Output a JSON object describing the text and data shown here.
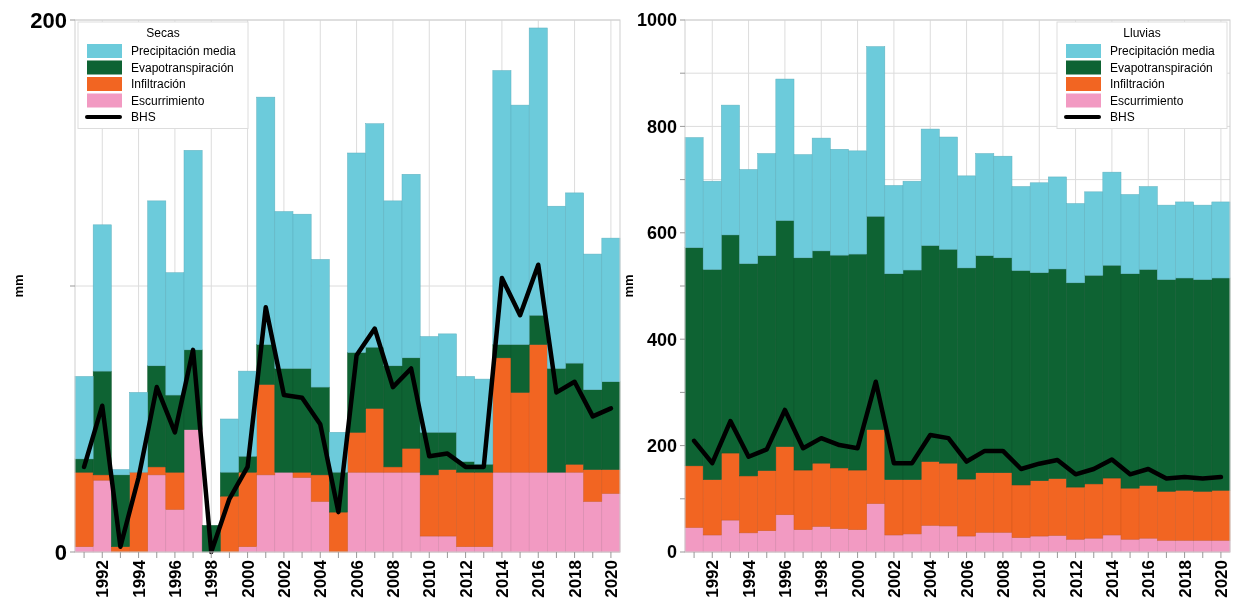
{
  "chart_data": [
    {
      "type": "bar",
      "stacked": true,
      "ylabel": "mm",
      "legend": "top left",
      "legend_title": "Secas",
      "grid": true,
      "ylim": [
        0,
        200
      ],
      "yticks": [
        0,
        {
          "value": 100,
          "label": null
        },
        200
      ],
      "categories": [
        null,
        "1992",
        null,
        "1994",
        null,
        "1996",
        null,
        "1998",
        null,
        "2000",
        null,
        "2002",
        null,
        "2004",
        null,
        "2006",
        null,
        "2008",
        null,
        "2010",
        null,
        "2012",
        null,
        "2014",
        null,
        "2016",
        null,
        "2018",
        null,
        "2020"
      ],
      "series": [
        {
          "name": "Escurrimiento",
          "color": "#f29ac2",
          "values": [
            2,
            27,
            0,
            0,
            29,
            16,
            46,
            0,
            0,
            2,
            29,
            30,
            28,
            19,
            0,
            30,
            30,
            30,
            30,
            6,
            6,
            2,
            2,
            30,
            30,
            30,
            30,
            30,
            19,
            22
          ]
        },
        {
          "name": "Infiltración",
          "color": "#f26522",
          "values": [
            28,
            2,
            2,
            30,
            3,
            14,
            0,
            0,
            21,
            28,
            34,
            0,
            2,
            10,
            15,
            15,
            24,
            2,
            9,
            23,
            25,
            28,
            28,
            43,
            30,
            48,
            0,
            3,
            12,
            9
          ]
        },
        {
          "name": "Evapotranspiración",
          "color": "#0e6333",
          "values": [
            5,
            39,
            27,
            0,
            38,
            29,
            30,
            10,
            9,
            6,
            15,
            39,
            39,
            33,
            15,
            30,
            23,
            38,
            34,
            16,
            14,
            4,
            3,
            5,
            18,
            11,
            39,
            38,
            30,
            33
          ]
        },
        {
          "name": "Precipitación media",
          "color": "#6ccbdb",
          "values": [
            31,
            55,
            2,
            30,
            62,
            46,
            75,
            0,
            20,
            32,
            93,
            59,
            58,
            48,
            15,
            75,
            84,
            62,
            69,
            36,
            37,
            32,
            32,
            103,
            90,
            108,
            61,
            64,
            51,
            54
          ]
        },
        {
          "name": "BHS",
          "type": "line",
          "color": "#000000",
          "values": [
            32,
            55,
            2,
            28,
            62,
            45,
            76,
            0,
            20,
            32,
            92,
            59,
            58,
            48,
            15,
            74,
            84,
            62,
            69,
            36,
            37,
            32,
            32,
            103,
            89,
            108,
            60,
            64,
            51,
            54
          ]
        }
      ]
    },
    {
      "type": "bar",
      "stacked": true,
      "ylabel": "mm",
      "legend": "top right",
      "legend_title": "Lluvias",
      "grid": true,
      "ylim": [
        0,
        1000
      ],
      "yticks": [
        0,
        {
          "value": 100,
          "label": null
        },
        200,
        {
          "value": 300,
          "label": null
        },
        400,
        {
          "value": 500,
          "label": null
        },
        600,
        {
          "value": 700,
          "label": null
        },
        800,
        {
          "value": 900,
          "label": null
        },
        1000
      ],
      "categories": [
        null,
        "1992",
        null,
        "1994",
        null,
        "1996",
        null,
        "1998",
        null,
        "2000",
        null,
        "2002",
        null,
        "2004",
        null,
        "2006",
        null,
        "2008",
        null,
        "2010",
        null,
        "2012",
        null,
        "2014",
        null,
        "2016",
        null,
        "2018",
        null,
        "2020"
      ],
      "series": [
        {
          "name": "Escurrimiento",
          "color": "#f29ac2",
          "values": [
            46,
            32,
            60,
            36,
            40,
            70,
            42,
            48,
            44,
            42,
            91,
            32,
            34,
            50,
            49,
            30,
            37,
            37,
            27,
            30,
            31,
            24,
            26,
            32,
            24,
            26,
            22,
            22,
            22,
            22
          ]
        },
        {
          "name": "Infiltración",
          "color": "#f26522",
          "values": [
            116,
            104,
            126,
            107,
            113,
            128,
            112,
            119,
            114,
            112,
            139,
            104,
            102,
            120,
            118,
            107,
            112,
            112,
            99,
            104,
            107,
            98,
            102,
            107,
            96,
            99,
            92,
            94,
            92,
            94
          ]
        },
        {
          "name": "Evapotranspiración",
          "color": "#0e6333",
          "values": [
            410,
            395,
            410,
            399,
            404,
            425,
            399,
            399,
            400,
            406,
            401,
            387,
            394,
            406,
            402,
            397,
            408,
            404,
            403,
            391,
            394,
            384,
            392,
            400,
            403,
            406,
            398,
            399,
            398,
            399
          ]
        },
        {
          "name": "Precipitación media",
          "color": "#6ccbdb",
          "values": [
            207,
            166,
            244,
            177,
            192,
            266,
            194,
            212,
            199,
            194,
            319,
            166,
            167,
            219,
            211,
            173,
            192,
            191,
            158,
            169,
            173,
            149,
            157,
            175,
            149,
            156,
            140,
            143,
            140,
            143
          ]
        },
        {
          "name": "BHS",
          "type": "line",
          "color": "#000000",
          "values": [
            209,
            167,
            246,
            179,
            193,
            267,
            195,
            214,
            201,
            195,
            320,
            167,
            167,
            220,
            214,
            170,
            190,
            190,
            156,
            166,
            173,
            146,
            156,
            174,
            146,
            156,
            138,
            141,
            138,
            141
          ]
        }
      ]
    }
  ]
}
